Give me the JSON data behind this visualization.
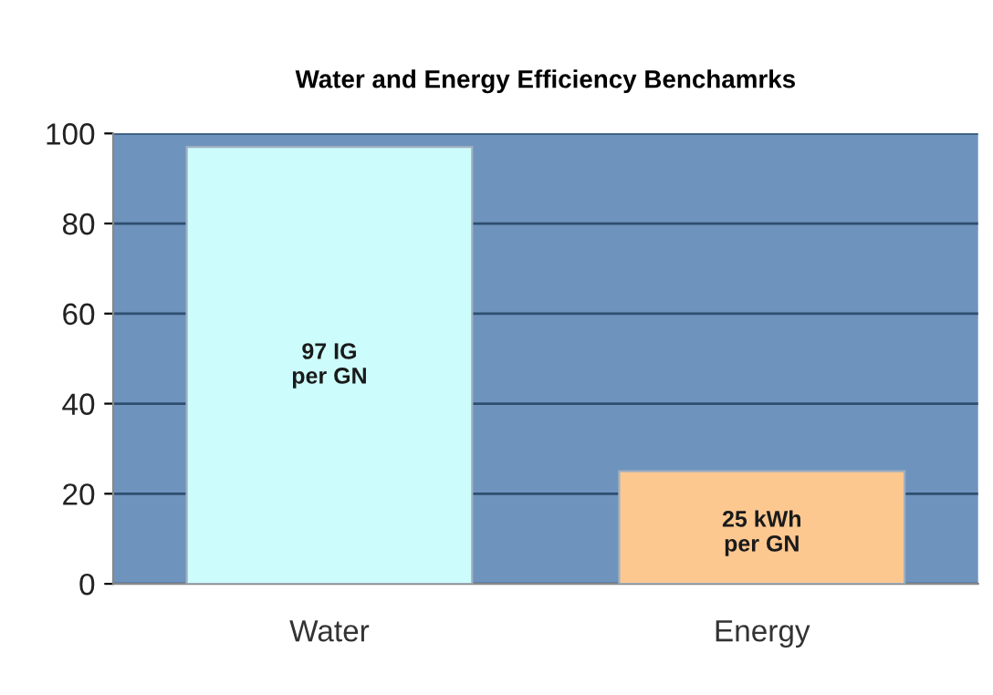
{
  "chart_data": {
    "type": "bar",
    "title": "Water and Energy Efficiency Benchamrks",
    "categories": [
      "Water",
      "Energy"
    ],
    "values": [
      97,
      25
    ],
    "colors": [
      "#ccfcfc",
      "#fcc890"
    ],
    "value_labels": [
      "97 IG\nper GN",
      "25 kWh\nper GN"
    ],
    "ylim": [
      0,
      100
    ],
    "yticks": [
      0,
      20,
      40,
      60,
      80,
      100
    ],
    "grid": "y"
  }
}
